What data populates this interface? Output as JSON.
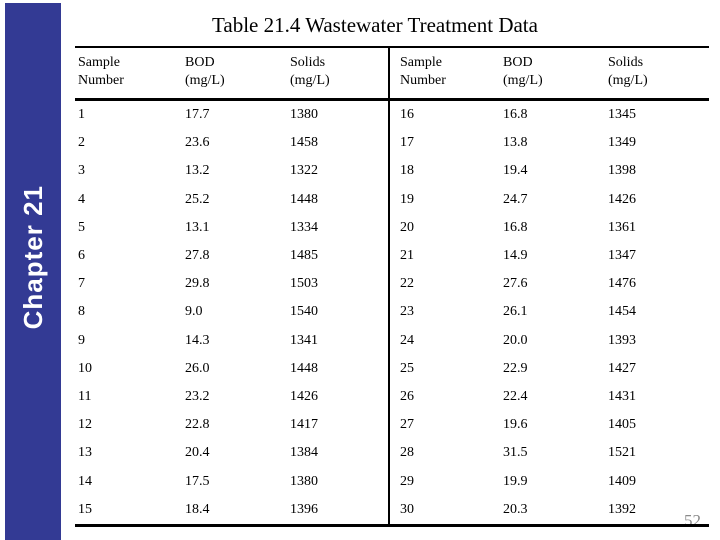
{
  "slide": {
    "title": "Table 21.4 Wastewater Treatment Data",
    "sidebar_label": "Chapter 21",
    "page_number": "52"
  },
  "colors": {
    "sidebar": "#333a94",
    "page_number": "#8a8a8a",
    "text": "#000000"
  },
  "table": {
    "columns": [
      {
        "line1": "Sample",
        "line2": "Number"
      },
      {
        "line1": "BOD",
        "line2": "(mg/L)"
      },
      {
        "line1": "Solids",
        "line2": "(mg/L)"
      }
    ],
    "rows": [
      {
        "sample": "1",
        "bod": "17.7",
        "solids": "1380"
      },
      {
        "sample": "2",
        "bod": "23.6",
        "solids": "1458"
      },
      {
        "sample": "3",
        "bod": "13.2",
        "solids": "1322"
      },
      {
        "sample": "4",
        "bod": "25.2",
        "solids": "1448"
      },
      {
        "sample": "5",
        "bod": "13.1",
        "solids": "1334"
      },
      {
        "sample": "6",
        "bod": "27.8",
        "solids": "1485"
      },
      {
        "sample": "7",
        "bod": "29.8",
        "solids": "1503"
      },
      {
        "sample": "8",
        "bod": "9.0",
        "solids": "1540"
      },
      {
        "sample": "9",
        "bod": "14.3",
        "solids": "1341"
      },
      {
        "sample": "10",
        "bod": "26.0",
        "solids": "1448"
      },
      {
        "sample": "11",
        "bod": "23.2",
        "solids": "1426"
      },
      {
        "sample": "12",
        "bod": "22.8",
        "solids": "1417"
      },
      {
        "sample": "13",
        "bod": "20.4",
        "solids": "1384"
      },
      {
        "sample": "14",
        "bod": "17.5",
        "solids": "1380"
      },
      {
        "sample": "15",
        "bod": "18.4",
        "solids": "1396"
      },
      {
        "sample": "16",
        "bod": "16.8",
        "solids": "1345"
      },
      {
        "sample": "17",
        "bod": "13.8",
        "solids": "1349"
      },
      {
        "sample": "18",
        "bod": "19.4",
        "solids": "1398"
      },
      {
        "sample": "19",
        "bod": "24.7",
        "solids": "1426"
      },
      {
        "sample": "20",
        "bod": "16.8",
        "solids": "1361"
      },
      {
        "sample": "21",
        "bod": "14.9",
        "solids": "1347"
      },
      {
        "sample": "22",
        "bod": "27.6",
        "solids": "1476"
      },
      {
        "sample": "23",
        "bod": "26.1",
        "solids": "1454"
      },
      {
        "sample": "24",
        "bod": "20.0",
        "solids": "1393"
      },
      {
        "sample": "25",
        "bod": "22.9",
        "solids": "1427"
      },
      {
        "sample": "26",
        "bod": "22.4",
        "solids": "1431"
      },
      {
        "sample": "27",
        "bod": "19.6",
        "solids": "1405"
      },
      {
        "sample": "28",
        "bod": "31.5",
        "solids": "1521"
      },
      {
        "sample": "29",
        "bod": "19.9",
        "solids": "1409"
      },
      {
        "sample": "30",
        "bod": "20.3",
        "solids": "1392"
      }
    ]
  }
}
